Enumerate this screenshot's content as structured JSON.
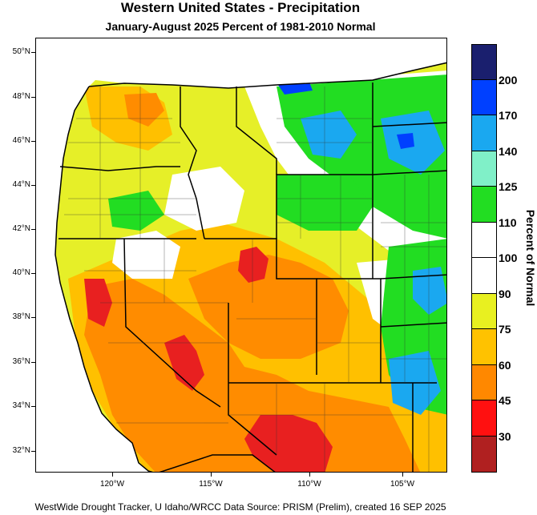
{
  "title": "Western United States - Precipitation",
  "subtitle": "January-August 2025  Percent of 1981-2010 Normal",
  "latitude_labels": [
    "50°N",
    "48°N",
    "46°N",
    "44°N",
    "42°N",
    "40°N",
    "38°N",
    "36°N",
    "34°N",
    "32°N"
  ],
  "longitude_labels": [
    "120°W",
    "115°W",
    "110°W",
    "105°W"
  ],
  "legend": {
    "title": "Percent of Normal",
    "labels": [
      "200",
      "170",
      "140",
      "125",
      "110",
      "100",
      "90",
      "75",
      "60",
      "45",
      "30"
    ],
    "colors": [
      "#1a1f6e",
      "#0040ff",
      "#1aa8f0",
      "#80f0c8",
      "#22dd22",
      "#ffffff",
      "#ffffff",
      "#e8f020",
      "#ffc200",
      "#ff8800",
      "#ff1010",
      "#b02020"
    ]
  },
  "colors": {
    "ocean": "#ffffff",
    "very_dry": "#e82020",
    "dry": "#ff8c00",
    "below": "#ffc000",
    "slightly_below": "#e6ef28",
    "near_normal": "#ffffff",
    "above": "#22dd22",
    "wet": "#1aa8f0",
    "very_wet": "#0040ff"
  },
  "footer": "WestWide Drought Tracker, U Idaho/WRCC Data Source: PRISM (Prelim), created 16 SEP 2025"
}
